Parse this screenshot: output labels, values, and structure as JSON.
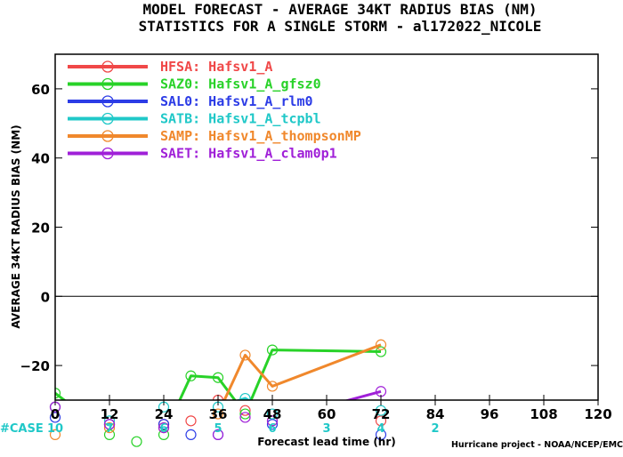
{
  "title_line1": "MODEL FORECAST - AVERAGE 34KT RADIUS BIAS (NM)",
  "title_line2": "STATISTICS FOR A SINGLE STORM - al172022_NICOLE",
  "ylabel": "AVERAGE 34KT RADIUS BIAS (NM)",
  "xlabel": "Forecast lead time (hr)",
  "credit": "Hurricane project - NOAA/NCEP/EMC",
  "case_label": "#CASE",
  "case_counts": [
    {
      "x": 0,
      "n": "10"
    },
    {
      "x": 12,
      "n": "7"
    },
    {
      "x": 24,
      "n": "6"
    },
    {
      "x": 36,
      "n": "5"
    },
    {
      "x": 48,
      "n": "6"
    },
    {
      "x": 60,
      "n": "3"
    },
    {
      "x": 72,
      "n": "4"
    },
    {
      "x": 84,
      "n": "2"
    }
  ],
  "chart_data": {
    "type": "line",
    "xlim": [
      0,
      120
    ],
    "ylim": [
      -30,
      70
    ],
    "xticks": [
      0,
      12,
      24,
      36,
      48,
      60,
      72,
      84,
      96,
      108,
      120
    ],
    "yticks": [
      -20,
      0,
      20,
      40,
      60
    ],
    "ytick_labels": [
      "−20",
      "0",
      "20",
      "40",
      "60"
    ],
    "zero_line": true,
    "legend_position": "top-left",
    "series": [
      {
        "name": "HFSA:  Hafsv1_A",
        "color": "#f04848",
        "x": [
          0,
          12,
          24,
          30,
          36,
          42,
          48,
          72
        ],
        "y": [
          -32,
          -37,
          -37,
          -36,
          -30,
          -33,
          -36,
          -36
        ]
      },
      {
        "name": "SAZ0:  Hafsv1_A_gfsz0",
        "color": "#28d228",
        "x": [
          0,
          12,
          18,
          24,
          30,
          36,
          42,
          48,
          72
        ],
        "y": [
          -28,
          -40,
          -42,
          -40,
          -23,
          -23.5,
          -34,
          -15.5,
          -16
        ]
      },
      {
        "name": "SAL0:  Hafsv1_A_rlm0",
        "color": "#2c3ce6",
        "x": [
          0,
          12,
          24,
          30,
          36,
          48,
          72
        ],
        "y": [
          -35,
          -37,
          -37,
          -40,
          -40,
          -37,
          -40
        ]
      },
      {
        "name": "SATB:  Hafsv1_A_tcpbl",
        "color": "#20c8c8",
        "x": [
          0,
          12,
          24,
          36,
          42,
          48,
          72
        ],
        "y": [
          -32,
          -36,
          -32,
          -32,
          -29.5,
          -34,
          -33
        ]
      },
      {
        "name": "SAMP:  Hafsv1_A_thompsonMP",
        "color": "#f0882c",
        "x": [
          0,
          12,
          24,
          36,
          42,
          48,
          72
        ],
        "y": [
          -40,
          -38,
          -38,
          -34,
          -17,
          -26,
          -14
        ]
      },
      {
        "name": "SAET:  Hafsv1_A_clam0p1",
        "color": "#a020d8",
        "x": [
          0,
          12,
          24,
          36,
          42,
          48,
          72
        ],
        "y": [
          -32,
          -37,
          -38,
          -40,
          -35,
          -36,
          -27.5
        ]
      }
    ]
  }
}
